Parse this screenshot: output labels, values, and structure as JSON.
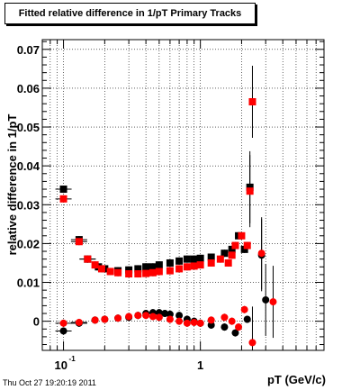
{
  "chart_data": {
    "type": "scatter",
    "title": "Fitted relative difference in 1/pT  Primary Tracks",
    "xlabel": "pT (GeV/c)",
    "ylabel": "relative difference in 1/pT",
    "x_scale": "log",
    "xlim": [
      0.07,
      8.0
    ],
    "ylim": [
      -0.0075,
      0.0725
    ],
    "grid": true,
    "x_tick_labels": [
      {
        "value": 0.1,
        "base": "10",
        "exp": "-1"
      },
      {
        "value": 1,
        "text": "1"
      }
    ],
    "y_tick_labels": [
      {
        "value": 0,
        "text": "0"
      },
      {
        "value": 0.01,
        "text": "0.01"
      },
      {
        "value": 0.02,
        "text": "0.02"
      },
      {
        "value": 0.03,
        "text": "0.03"
      },
      {
        "value": 0.04,
        "text": "0.04"
      },
      {
        "value": 0.05,
        "text": "0.05"
      },
      {
        "value": 0.06,
        "text": "0.06"
      },
      {
        "value": 0.07,
        "text": "0.07"
      }
    ],
    "series": [
      {
        "marker": "circle",
        "color": "#000000",
        "points": [
          [
            0.1,
            -0.0025
          ],
          [
            0.13,
            -0.0005
          ],
          [
            0.17,
            0.0003
          ],
          [
            0.2,
            0.0005
          ],
          [
            0.25,
            0.0008
          ],
          [
            0.3,
            0.001
          ],
          [
            0.35,
            0.0015
          ],
          [
            0.4,
            0.002
          ],
          [
            0.45,
            0.0022
          ],
          [
            0.5,
            0.0022
          ],
          [
            0.55,
            0.002
          ],
          [
            0.6,
            0.0018
          ],
          [
            0.7,
            0.0015
          ],
          [
            0.8,
            0.0005
          ],
          [
            0.9,
            0.0
          ],
          [
            1.0,
            -0.0005
          ],
          [
            1.2,
            -0.001
          ],
          [
            1.5,
            -0.0015
          ],
          [
            1.8,
            -0.003
          ],
          [
            2.2,
            0.0005
          ],
          [
            2.8,
            0.017
          ],
          [
            3.0,
            0.0055
          ]
        ]
      },
      {
        "marker": "square",
        "color": "#000000",
        "points": [
          [
            0.1,
            0.034
          ],
          [
            0.13,
            0.021
          ],
          [
            0.15,
            0.016
          ],
          [
            0.18,
            0.014
          ],
          [
            0.2,
            0.0135
          ],
          [
            0.25,
            0.013
          ],
          [
            0.3,
            0.0132
          ],
          [
            0.35,
            0.0135
          ],
          [
            0.4,
            0.014
          ],
          [
            0.45,
            0.014
          ],
          [
            0.5,
            0.0145
          ],
          [
            0.6,
            0.015
          ],
          [
            0.7,
            0.0155
          ],
          [
            0.8,
            0.016
          ],
          [
            0.9,
            0.016
          ],
          [
            1.0,
            0.0162
          ],
          [
            1.2,
            0.0165
          ],
          [
            1.5,
            0.0175
          ],
          [
            1.7,
            0.0185
          ],
          [
            1.9,
            0.022
          ],
          [
            2.1,
            0.0185
          ],
          [
            2.3,
            0.0345
          ]
        ]
      },
      {
        "marker": "circle",
        "color": "#ff0000",
        "points": [
          [
            0.1,
            -0.0005
          ],
          [
            0.13,
            -0.0003
          ],
          [
            0.17,
            0.0003
          ],
          [
            0.2,
            0.0005
          ],
          [
            0.25,
            0.0008
          ],
          [
            0.3,
            0.0012
          ],
          [
            0.35,
            0.0015
          ],
          [
            0.4,
            0.0015
          ],
          [
            0.45,
            0.0012
          ],
          [
            0.5,
            0.001
          ],
          [
            0.6,
            0.0005
          ],
          [
            0.7,
            0.0
          ],
          [
            0.8,
            -0.0005
          ],
          [
            0.9,
            -0.0003
          ],
          [
            1.0,
            -0.0005
          ],
          [
            1.2,
            0.0003
          ],
          [
            1.5,
            0.001
          ],
          [
            1.7,
            0.0
          ],
          [
            1.9,
            -0.0015
          ],
          [
            2.1,
            0.003
          ],
          [
            2.4,
            -0.0055
          ],
          [
            2.8,
            0.0175
          ],
          [
            3.4,
            0.005
          ]
        ]
      },
      {
        "marker": "square",
        "color": "#ff0000",
        "points": [
          [
            0.1,
            0.0315
          ],
          [
            0.13,
            0.0205
          ],
          [
            0.15,
            0.016
          ],
          [
            0.17,
            0.0145
          ],
          [
            0.19,
            0.0135
          ],
          [
            0.22,
            0.0128
          ],
          [
            0.25,
            0.0125
          ],
          [
            0.3,
            0.0122
          ],
          [
            0.35,
            0.0122
          ],
          [
            0.4,
            0.0123
          ],
          [
            0.45,
            0.0125
          ],
          [
            0.5,
            0.0128
          ],
          [
            0.6,
            0.013
          ],
          [
            0.7,
            0.0135
          ],
          [
            0.8,
            0.014
          ],
          [
            0.9,
            0.0142
          ],
          [
            1.0,
            0.0145
          ],
          [
            1.2,
            0.015
          ],
          [
            1.4,
            0.016
          ],
          [
            1.6,
            0.015
          ],
          [
            1.7,
            0.017
          ],
          [
            1.8,
            0.0195
          ],
          [
            2.0,
            0.022
          ],
          [
            2.2,
            0.0195
          ],
          [
            2.3,
            0.0335
          ],
          [
            2.4,
            0.0565
          ]
        ]
      }
    ]
  },
  "timestamp": "Thu Oct 27 19:20:19 2011"
}
